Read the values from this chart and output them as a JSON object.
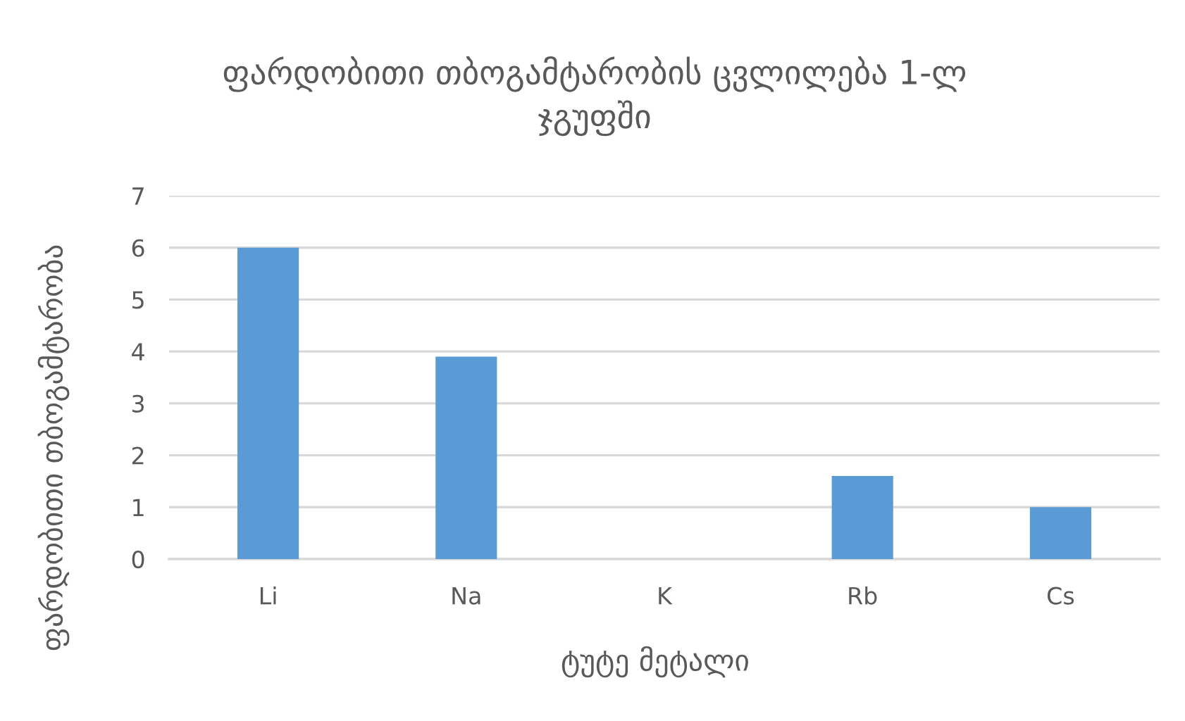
{
  "chart_data": {
    "type": "bar",
    "title": "ფარდობითი თბოგამტარობის ცვლილება 1-ლ\nჯგუფში",
    "xlabel": "ტუტე მეტალი",
    "ylabel": "ფარდობითი თბოგამტარობა",
    "categories": [
      "Li",
      "Na",
      "K",
      "Rb",
      "Cs"
    ],
    "values": [
      6.0,
      3.9,
      null,
      1.6,
      1.0
    ],
    "color": "#5b9bd5",
    "ylim": [
      0,
      7
    ],
    "yticks": [
      0,
      1,
      2,
      3,
      4,
      5,
      6,
      7
    ],
    "grid": "y"
  }
}
